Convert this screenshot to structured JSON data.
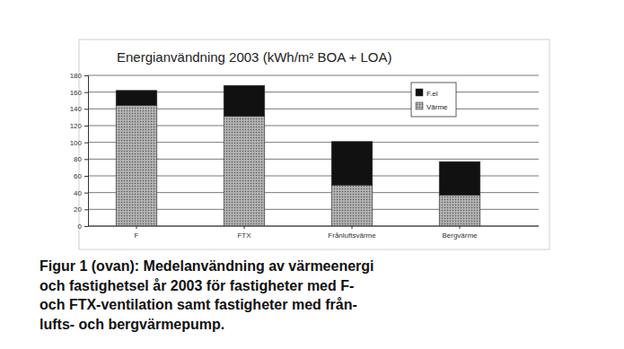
{
  "chart_data": {
    "type": "bar",
    "title": "Energianvändning 2003 (kWh/m² BOA + LOA)",
    "categories": [
      "F",
      "FTX",
      "Frånluftsvärme",
      "Bergvärme"
    ],
    "series": [
      {
        "name": "Värme",
        "color": "#a3a3a3",
        "values": [
          144,
          131,
          49,
          37
        ]
      },
      {
        "name": "F.el",
        "color": "#111111",
        "values": [
          18,
          37,
          52,
          40
        ]
      }
    ],
    "stacked": true,
    "ylim": [
      0,
      180
    ],
    "yticks": [
      0,
      20,
      40,
      60,
      80,
      100,
      120,
      140,
      160,
      180
    ],
    "grid": true,
    "legend": "upper right",
    "annotations": [
      "Figur 1 (ovan): Medelanvändning av värmeenergi",
      "och fastighetsel år 2003 för fastigheter med F-",
      "och FTX-ventilation samt fastigheter med från-",
      "lufts- och bergvärmepump."
    ]
  }
}
